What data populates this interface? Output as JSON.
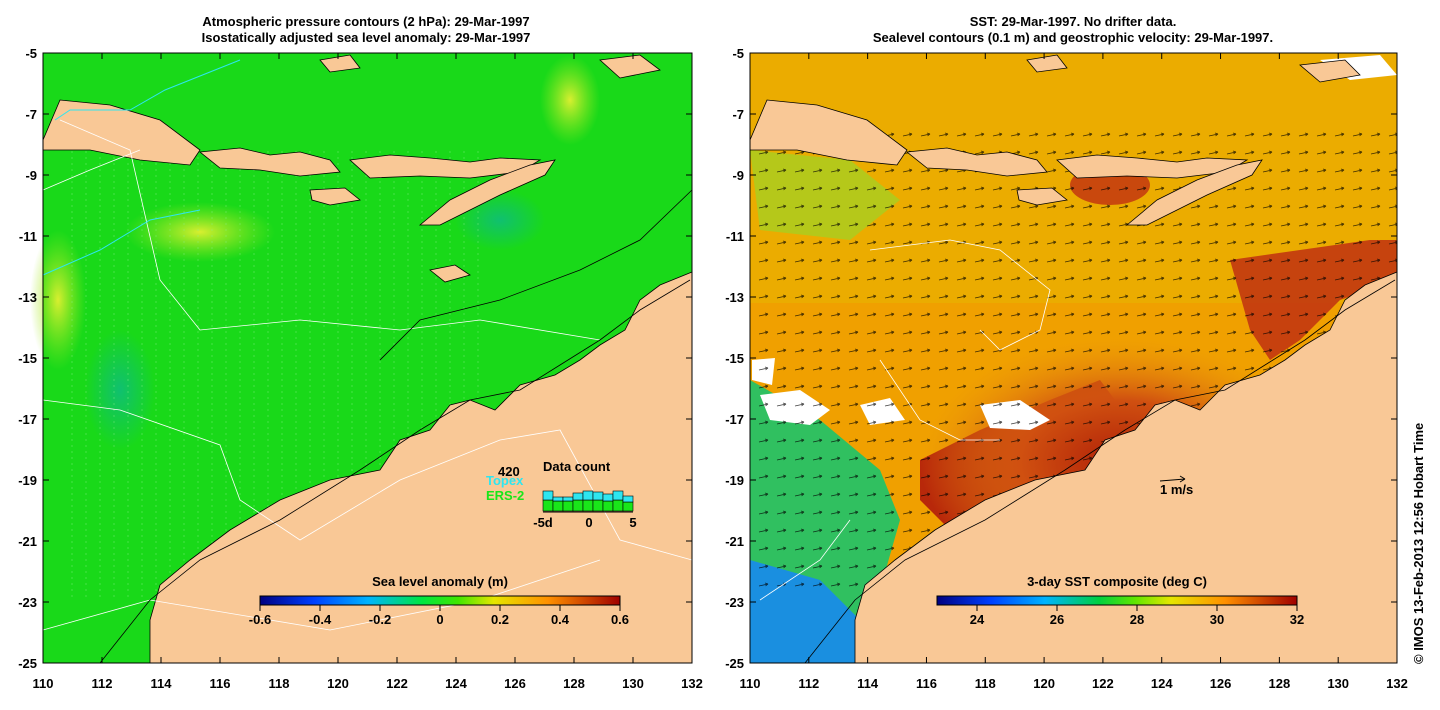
{
  "left_panel": {
    "title_line1": "Atmospheric pressure contours (2 hPa): 29-Mar-1997",
    "title_line2": "Isostatically adjusted sea level anomaly: 29-Mar-1997",
    "colorbar": {
      "title": "Sea level anomaly (m)",
      "ticks": [
        "-0.6",
        "-0.4",
        "-0.2",
        "0",
        "0.2",
        "0.4",
        "0.6"
      ]
    },
    "data_count": {
      "title": "Data count",
      "count": "420",
      "topex_label": "Topex",
      "ers2_label": "ERS-2",
      "axis_ticks": [
        "-5d",
        "0",
        "5"
      ],
      "ers2_values": [
        0.55,
        0.5,
        0.5,
        0.55,
        0.55,
        0.55,
        0.5,
        0.55,
        0.45
      ],
      "topex_values": [
        0.45,
        0.2,
        0.2,
        0.35,
        0.45,
        0.4,
        0.35,
        0.45,
        0.3
      ],
      "colors": {
        "topex": "#2ee6f0",
        "ers2": "#19e619"
      }
    }
  },
  "right_panel": {
    "title_line1": "SST: 29-Mar-1997. No drifter data.",
    "title_line2": "Sealevel contours (0.1 m) and geostrophic velocity: 29-Mar-1997.",
    "colorbar": {
      "title": "3-day SST composite (deg C)",
      "ticks": [
        "24",
        "26",
        "28",
        "30",
        "32"
      ]
    },
    "scale_arrow_label": "1 m/s"
  },
  "axes": {
    "x_ticks": [
      "110",
      "112",
      "114",
      "116",
      "118",
      "120",
      "122",
      "124",
      "126",
      "128",
      "130",
      "132"
    ],
    "y_ticks": [
      "-5",
      "-7",
      "-9",
      "-11",
      "-13",
      "-15",
      "-17",
      "-19",
      "-21",
      "-23",
      "-25"
    ],
    "lon_range": [
      110,
      132
    ],
    "lat_range": [
      -25,
      -5
    ]
  },
  "credit": "© IMOS 13-Feb-2013 12:56 Hobart Time",
  "colors": {
    "land": "#f9c896",
    "sla_ocean": "#19d919",
    "sst_hot": "#c0300a",
    "sst_warm": "#f0a000",
    "sst_cool": "#1a9bd9"
  }
}
